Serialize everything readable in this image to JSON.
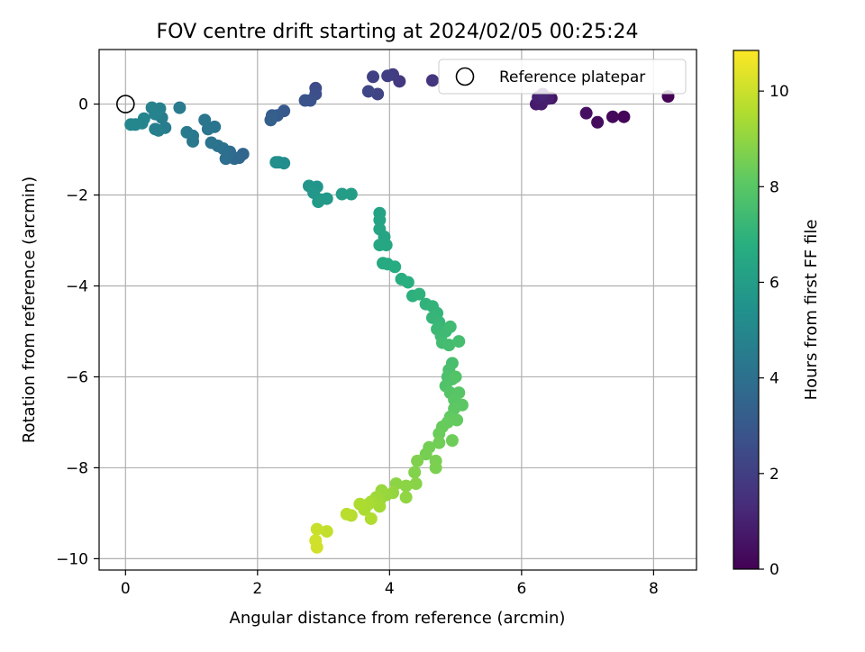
{
  "chart_data": {
    "type": "scatter",
    "title": "FOV centre drift starting at 2024/02/05 00:25:24",
    "xlabel": "Angular distance from reference (arcmin)",
    "ylabel": "Rotation from reference (arcmin)",
    "xlim": [
      -0.4,
      8.65
    ],
    "ylim": [
      -10.25,
      1.2
    ],
    "xticks": [
      0,
      2,
      4,
      6,
      8
    ],
    "xtick_labels": [
      "0",
      "2",
      "4",
      "6",
      "8"
    ],
    "yticks": [
      0,
      -2,
      -4,
      -6,
      -8,
      -10
    ],
    "ytick_labels": [
      "0",
      "−2",
      "−4",
      "−6",
      "−8",
      "−10"
    ],
    "grid": true,
    "legend": {
      "placement": "top-right",
      "entries": [
        "Reference platepar"
      ]
    },
    "reference_point": {
      "x": 0,
      "y": 0
    },
    "colorbar": {
      "label": "Hours from first FF file",
      "range": [
        0,
        10.85
      ],
      "ticks": [
        0,
        2,
        4,
        6,
        8,
        10
      ],
      "tick_labels": [
        "0",
        "2",
        "4",
        "6",
        "8",
        "10"
      ],
      "colormap": "viridis"
    },
    "points": [
      {
        "x": 8.22,
        "y": 0.17,
        "t": 0.05
      },
      {
        "x": 7.55,
        "y": -0.28,
        "t": 0.15
      },
      {
        "x": 7.38,
        "y": -0.28,
        "t": 0.25
      },
      {
        "x": 7.15,
        "y": -0.4,
        "t": 0.35
      },
      {
        "x": 6.98,
        "y": -0.2,
        "t": 0.45
      },
      {
        "x": 6.45,
        "y": 0.13,
        "t": 0.55
      },
      {
        "x": 6.35,
        "y": 0.17,
        "t": 0.62
      },
      {
        "x": 6.28,
        "y": 0.1,
        "t": 0.7
      },
      {
        "x": 6.22,
        "y": 0.0,
        "t": 0.78
      },
      {
        "x": 6.3,
        "y": 0.0,
        "t": 0.85
      },
      {
        "x": 6.4,
        "y": 0.12,
        "t": 0.92
      },
      {
        "x": 6.25,
        "y": 0.15,
        "t": 1.0
      },
      {
        "x": 6.32,
        "y": 0.22,
        "t": 1.1
      },
      {
        "x": 4.65,
        "y": 0.52,
        "t": 1.6
      },
      {
        "x": 4.15,
        "y": 0.5,
        "t": 1.8
      },
      {
        "x": 4.05,
        "y": 0.65,
        "t": 1.9
      },
      {
        "x": 3.97,
        "y": 0.62,
        "t": 2.0
      },
      {
        "x": 3.75,
        "y": 0.6,
        "t": 2.1
      },
      {
        "x": 3.82,
        "y": 0.22,
        "t": 2.2
      },
      {
        "x": 3.68,
        "y": 0.28,
        "t": 2.3
      },
      {
        "x": 2.88,
        "y": 0.35,
        "t": 2.5
      },
      {
        "x": 2.88,
        "y": 0.22,
        "t": 2.6
      },
      {
        "x": 2.8,
        "y": 0.08,
        "t": 2.7
      },
      {
        "x": 2.72,
        "y": 0.08,
        "t": 2.8
      },
      {
        "x": 2.4,
        "y": -0.15,
        "t": 3.0
      },
      {
        "x": 2.3,
        "y": -0.25,
        "t": 3.1
      },
      {
        "x": 2.22,
        "y": -0.25,
        "t": 3.2
      },
      {
        "x": 2.2,
        "y": -0.35,
        "t": 3.3
      },
      {
        "x": 1.78,
        "y": -1.1,
        "t": 3.5
      },
      {
        "x": 1.72,
        "y": -1.18,
        "t": 3.6
      },
      {
        "x": 1.65,
        "y": -1.2,
        "t": 3.7
      },
      {
        "x": 1.58,
        "y": -1.05,
        "t": 3.8
      },
      {
        "x": 1.52,
        "y": -1.2,
        "t": 3.9
      },
      {
        "x": 1.48,
        "y": -0.98,
        "t": 4.0
      },
      {
        "x": 1.4,
        "y": -0.92,
        "t": 4.05
      },
      {
        "x": 1.3,
        "y": -0.85,
        "t": 4.1
      },
      {
        "x": 1.35,
        "y": -0.5,
        "t": 4.15
      },
      {
        "x": 1.25,
        "y": -0.55,
        "t": 4.2
      },
      {
        "x": 1.2,
        "y": -0.35,
        "t": 4.25
      },
      {
        "x": 1.02,
        "y": -0.82,
        "t": 4.3
      },
      {
        "x": 1.02,
        "y": -0.7,
        "t": 4.35
      },
      {
        "x": 0.93,
        "y": -0.62,
        "t": 4.4
      },
      {
        "x": 0.82,
        "y": -0.08,
        "t": 4.45
      },
      {
        "x": 0.6,
        "y": -0.52,
        "t": 4.5
      },
      {
        "x": 0.55,
        "y": -0.3,
        "t": 4.55
      },
      {
        "x": 0.5,
        "y": -0.58,
        "t": 4.6
      },
      {
        "x": 0.45,
        "y": -0.55,
        "t": 4.65
      },
      {
        "x": 0.52,
        "y": -0.1,
        "t": 4.7
      },
      {
        "x": 0.45,
        "y": -0.22,
        "t": 4.75
      },
      {
        "x": 0.4,
        "y": -0.08,
        "t": 4.8
      },
      {
        "x": 0.28,
        "y": -0.32,
        "t": 4.85
      },
      {
        "x": 0.25,
        "y": -0.42,
        "t": 4.9
      },
      {
        "x": 0.15,
        "y": -0.45,
        "t": 4.95
      },
      {
        "x": 0.08,
        "y": -0.45,
        "t": 5.0
      },
      {
        "x": 2.4,
        "y": -1.3,
        "t": 5.2
      },
      {
        "x": 2.32,
        "y": -1.28,
        "t": 5.3
      },
      {
        "x": 2.28,
        "y": -1.28,
        "t": 5.35
      },
      {
        "x": 2.9,
        "y": -1.82,
        "t": 5.6
      },
      {
        "x": 2.78,
        "y": -1.8,
        "t": 5.65
      },
      {
        "x": 2.85,
        "y": -1.95,
        "t": 5.7
      },
      {
        "x": 2.95,
        "y": -2.1,
        "t": 5.75
      },
      {
        "x": 3.05,
        "y": -2.08,
        "t": 5.8
      },
      {
        "x": 2.92,
        "y": -2.15,
        "t": 5.85
      },
      {
        "x": 3.28,
        "y": -1.98,
        "t": 5.95
      },
      {
        "x": 3.42,
        "y": -1.98,
        "t": 6.0
      },
      {
        "x": 3.85,
        "y": -2.4,
        "t": 6.2
      },
      {
        "x": 3.85,
        "y": -2.55,
        "t": 6.25
      },
      {
        "x": 3.85,
        "y": -2.75,
        "t": 6.3
      },
      {
        "x": 3.92,
        "y": -2.92,
        "t": 6.35
      },
      {
        "x": 3.95,
        "y": -3.1,
        "t": 6.4
      },
      {
        "x": 3.85,
        "y": -3.1,
        "t": 6.45
      },
      {
        "x": 3.9,
        "y": -3.5,
        "t": 6.55
      },
      {
        "x": 3.97,
        "y": -3.52,
        "t": 6.6
      },
      {
        "x": 4.08,
        "y": -3.58,
        "t": 6.65
      },
      {
        "x": 4.18,
        "y": -3.85,
        "t": 6.75
      },
      {
        "x": 4.28,
        "y": -3.92,
        "t": 6.8
      },
      {
        "x": 4.35,
        "y": -4.22,
        "t": 6.9
      },
      {
        "x": 4.45,
        "y": -4.18,
        "t": 6.95
      },
      {
        "x": 4.55,
        "y": -4.4,
        "t": 7.0
      },
      {
        "x": 4.65,
        "y": -4.45,
        "t": 7.05
      },
      {
        "x": 4.72,
        "y": -4.6,
        "t": 7.1
      },
      {
        "x": 4.65,
        "y": -4.7,
        "t": 7.15
      },
      {
        "x": 4.75,
        "y": -4.8,
        "t": 7.2
      },
      {
        "x": 4.72,
        "y": -4.95,
        "t": 7.25
      },
      {
        "x": 4.85,
        "y": -5.0,
        "t": 7.3
      },
      {
        "x": 4.78,
        "y": -5.1,
        "t": 7.35
      },
      {
        "x": 4.92,
        "y": -4.9,
        "t": 7.4
      },
      {
        "x": 4.8,
        "y": -5.25,
        "t": 7.45
      },
      {
        "x": 4.9,
        "y": -5.3,
        "t": 7.5
      },
      {
        "x": 5.05,
        "y": -5.22,
        "t": 7.55
      },
      {
        "x": 4.95,
        "y": -5.7,
        "t": 7.6
      },
      {
        "x": 4.9,
        "y": -5.85,
        "t": 7.65
      },
      {
        "x": 4.88,
        "y": -6.0,
        "t": 7.7
      },
      {
        "x": 4.95,
        "y": -6.05,
        "t": 7.75
      },
      {
        "x": 4.85,
        "y": -6.2,
        "t": 7.8
      },
      {
        "x": 5.0,
        "y": -6.0,
        "t": 7.85
      },
      {
        "x": 4.92,
        "y": -6.35,
        "t": 7.9
      },
      {
        "x": 5.05,
        "y": -6.35,
        "t": 7.95
      },
      {
        "x": 4.98,
        "y": -6.5,
        "t": 8.0
      },
      {
        "x": 5.1,
        "y": -6.62,
        "t": 8.05
      },
      {
        "x": 4.98,
        "y": -6.7,
        "t": 8.1
      },
      {
        "x": 4.92,
        "y": -6.88,
        "t": 8.15
      },
      {
        "x": 5.02,
        "y": -6.95,
        "t": 8.2
      },
      {
        "x": 4.88,
        "y": -7.0,
        "t": 8.25
      },
      {
        "x": 4.8,
        "y": -7.1,
        "t": 8.3
      },
      {
        "x": 4.75,
        "y": -7.25,
        "t": 8.35
      },
      {
        "x": 4.95,
        "y": -7.4,
        "t": 8.4
      },
      {
        "x": 4.75,
        "y": -7.45,
        "t": 8.45
      },
      {
        "x": 4.6,
        "y": -7.55,
        "t": 8.5
      },
      {
        "x": 4.55,
        "y": -7.7,
        "t": 8.55
      },
      {
        "x": 4.7,
        "y": -7.85,
        "t": 8.6
      },
      {
        "x": 4.7,
        "y": -8.0,
        "t": 8.65
      },
      {
        "x": 4.42,
        "y": -7.85,
        "t": 8.7
      },
      {
        "x": 4.38,
        "y": -8.1,
        "t": 8.75
      },
      {
        "x": 4.4,
        "y": -8.35,
        "t": 8.85
      },
      {
        "x": 4.25,
        "y": -8.4,
        "t": 8.9
      },
      {
        "x": 4.1,
        "y": -8.35,
        "t": 8.95
      },
      {
        "x": 4.25,
        "y": -8.65,
        "t": 9.0
      },
      {
        "x": 4.05,
        "y": -8.55,
        "t": 9.05
      },
      {
        "x": 3.95,
        "y": -8.6,
        "t": 9.1
      },
      {
        "x": 3.88,
        "y": -8.5,
        "t": 9.15
      },
      {
        "x": 3.85,
        "y": -8.72,
        "t": 9.2
      },
      {
        "x": 3.8,
        "y": -8.65,
        "t": 9.25
      },
      {
        "x": 3.85,
        "y": -8.85,
        "t": 9.3
      },
      {
        "x": 3.72,
        "y": -8.75,
        "t": 9.35
      },
      {
        "x": 3.68,
        "y": -8.8,
        "t": 9.4
      },
      {
        "x": 3.62,
        "y": -8.92,
        "t": 9.45
      },
      {
        "x": 3.55,
        "y": -8.8,
        "t": 9.5
      },
      {
        "x": 3.72,
        "y": -9.12,
        "t": 9.55
      },
      {
        "x": 3.42,
        "y": -9.05,
        "t": 9.65
      },
      {
        "x": 3.35,
        "y": -9.02,
        "t": 9.7
      },
      {
        "x": 3.05,
        "y": -9.4,
        "t": 9.85
      },
      {
        "x": 2.9,
        "y": -9.35,
        "t": 9.95
      },
      {
        "x": 2.88,
        "y": -9.6,
        "t": 10.05
      },
      {
        "x": 2.9,
        "y": -9.75,
        "t": 10.1
      }
    ]
  }
}
